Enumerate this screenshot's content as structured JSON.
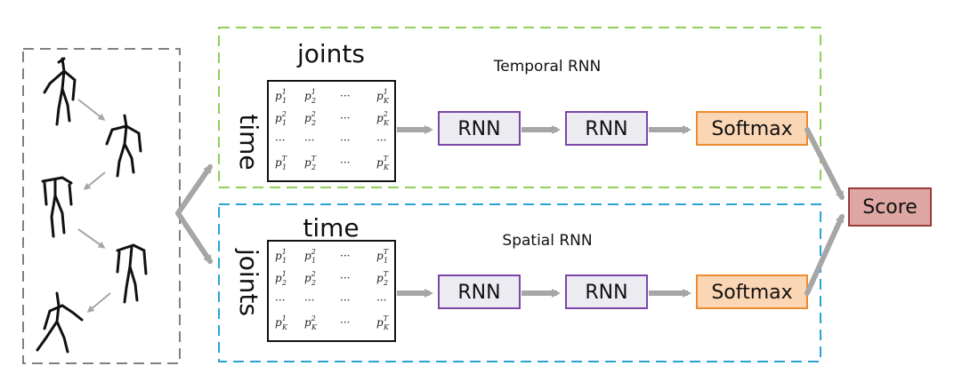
{
  "figure": {
    "temporal_branch": {
      "title": "Temporal RNN",
      "matrix_top_label": "joints",
      "matrix_side_label": "time",
      "matrix_rows": [
        [
          {
            "b": "p",
            "sub": "1",
            "sup": "1"
          },
          {
            "b": "p",
            "sub": "2",
            "sup": "1"
          },
          {
            "b": "···",
            "sub": "",
            "sup": ""
          },
          {
            "b": "p",
            "sub": "K",
            "sup": "1"
          }
        ],
        [
          {
            "b": "p",
            "sub": "1",
            "sup": "2"
          },
          {
            "b": "p",
            "sub": "2",
            "sup": "2"
          },
          {
            "b": "···",
            "sub": "",
            "sup": ""
          },
          {
            "b": "p",
            "sub": "K",
            "sup": "2"
          }
        ],
        [
          {
            "b": "···",
            "sub": "",
            "sup": ""
          },
          {
            "b": "···",
            "sub": "",
            "sup": ""
          },
          {
            "b": "···",
            "sub": "",
            "sup": ""
          },
          {
            "b": "···",
            "sub": "",
            "sup": ""
          }
        ],
        [
          {
            "b": "p",
            "sub": "1",
            "sup": "T"
          },
          {
            "b": "p",
            "sub": "2",
            "sup": "T"
          },
          {
            "b": "···",
            "sub": "",
            "sup": ""
          },
          {
            "b": "p",
            "sub": "K",
            "sup": "T"
          }
        ]
      ],
      "rnn1": "RNN",
      "rnn2": "RNN",
      "softmax": "Softmax"
    },
    "spatial_branch": {
      "title": "Spatial RNN",
      "matrix_top_label": "time",
      "matrix_side_label": "joints",
      "matrix_rows": [
        [
          {
            "b": "p",
            "sub": "1",
            "sup": "1"
          },
          {
            "b": "p",
            "sub": "1",
            "sup": "2"
          },
          {
            "b": "···",
            "sub": "",
            "sup": ""
          },
          {
            "b": "p",
            "sub": "1",
            "sup": "T"
          }
        ],
        [
          {
            "b": "p",
            "sub": "2",
            "sup": "1"
          },
          {
            "b": "p",
            "sub": "2",
            "sup": "2"
          },
          {
            "b": "···",
            "sub": "",
            "sup": ""
          },
          {
            "b": "p",
            "sub": "2",
            "sup": "T"
          }
        ],
        [
          {
            "b": "···",
            "sub": "",
            "sup": ""
          },
          {
            "b": "···",
            "sub": "",
            "sup": ""
          },
          {
            "b": "···",
            "sub": "",
            "sup": ""
          },
          {
            "b": "···",
            "sub": "",
            "sup": ""
          }
        ],
        [
          {
            "b": "p",
            "sub": "K",
            "sup": "1"
          },
          {
            "b": "p",
            "sub": "K",
            "sup": "2"
          },
          {
            "b": "···",
            "sub": "",
            "sup": ""
          },
          {
            "b": "p",
            "sub": "K",
            "sup": "T"
          }
        ]
      ],
      "rnn1": "RNN",
      "rnn2": "RNN",
      "softmax": "Softmax"
    },
    "score": "Score",
    "colors": {
      "temporal_border": "#8fcf5a",
      "spatial_border": "#29a3d6",
      "input_border": "#808080",
      "rnn_border": "#7b46a8",
      "rnn_fill": "#ecebf2",
      "softmax_border": "#ee8a2e",
      "softmax_fill": "#fbd6b4",
      "score_border": "#9b3b3b",
      "score_fill": "#dea7a3",
      "arrow": "#a6a6a6"
    },
    "icons": [
      "skeleton-pose-icon"
    ]
  }
}
